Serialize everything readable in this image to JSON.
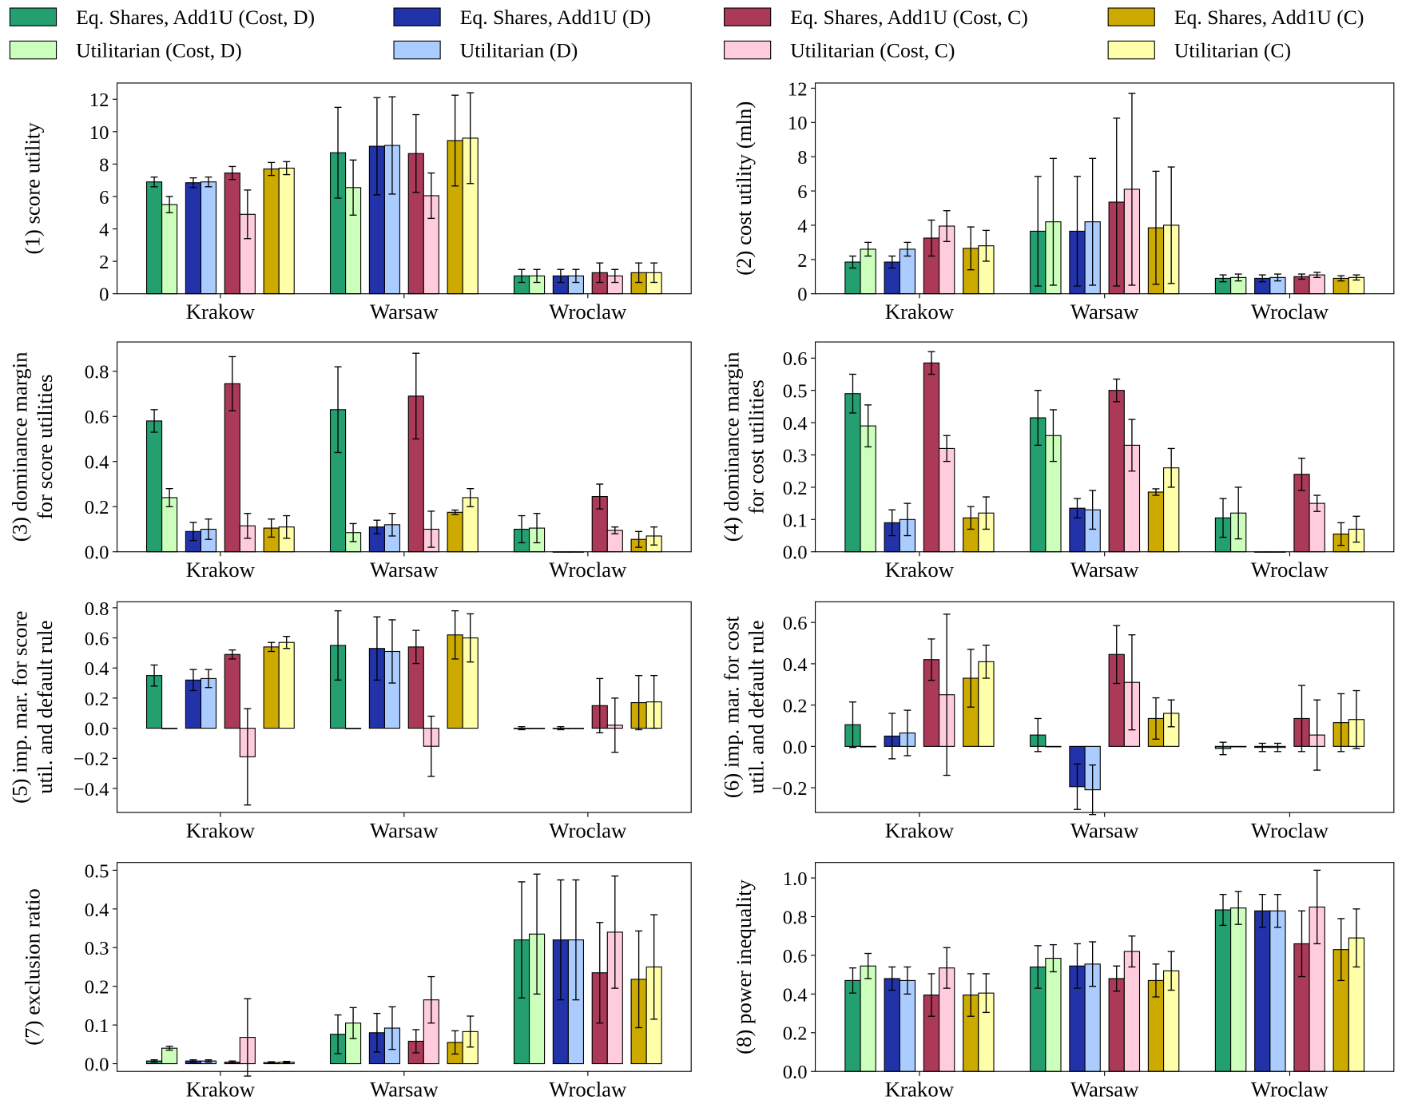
{
  "legend": {
    "placement": "top",
    "entries": [
      {
        "name": "Eq. Shares, Add1U (Cost, D)",
        "color": "#24a070"
      },
      {
        "name": "Utilitarian (Cost, D)",
        "color": "#ccffbb"
      },
      {
        "name": "Eq. Shares, Add1U (D)",
        "color": "#2233aa"
      },
      {
        "name": "Utilitarian (D)",
        "color": "#aaccff"
      },
      {
        "name": "Eq. Shares, Add1U (Cost, C)",
        "color": "#aa3a58"
      },
      {
        "name": "Utilitarian (Cost, C)",
        "color": "#ffccdd"
      },
      {
        "name": "Eq. Shares, Add1U (C)",
        "color": "#ccaa00"
      },
      {
        "name": "Utilitarian (C)",
        "color": "#ffffaa"
      }
    ]
  },
  "chart_data": [
    {
      "type": "bar",
      "ylabel": [
        "(1) score utility"
      ],
      "categories": [
        "Krakow",
        "Warsaw",
        "Wroclaw"
      ],
      "ylim": [
        0,
        13
      ],
      "yticks": [
        "0",
        "2",
        "4",
        "6",
        "8",
        "10",
        "12"
      ],
      "ytick_values": [
        0,
        2,
        4,
        6,
        8,
        10,
        12
      ],
      "values": [
        [
          6.9,
          5.5,
          6.85,
          6.9,
          7.45,
          4.9,
          7.7,
          7.75
        ],
        [
          8.7,
          6.55,
          9.1,
          9.15,
          8.65,
          6.05,
          9.45,
          9.6
        ],
        [
          1.1,
          1.1,
          1.1,
          1.1,
          1.3,
          1.1,
          1.3,
          1.3
        ]
      ],
      "errors": [
        [
          0.3,
          0.5,
          0.3,
          0.3,
          0.4,
          1.5,
          0.4,
          0.4
        ],
        [
          2.8,
          1.7,
          3.0,
          3.0,
          2.4,
          1.4,
          2.8,
          2.8
        ],
        [
          0.4,
          0.4,
          0.4,
          0.4,
          0.6,
          0.4,
          0.6,
          0.6
        ]
      ]
    },
    {
      "type": "bar",
      "ylabel": [
        "(2) cost utility (mln)"
      ],
      "categories": [
        "Krakow",
        "Warsaw",
        "Wroclaw"
      ],
      "ylim": [
        0,
        12.3
      ],
      "yticks": [
        "0",
        "2",
        "4",
        "6",
        "8",
        "10",
        "12"
      ],
      "ytick_values": [
        0,
        2,
        4,
        6,
        8,
        10,
        12
      ],
      "values": [
        [
          1.85,
          2.6,
          1.85,
          2.6,
          3.25,
          3.95,
          2.65,
          2.8
        ],
        [
          3.65,
          4.2,
          3.65,
          4.2,
          5.35,
          6.1,
          3.85,
          4.0
        ],
        [
          0.9,
          0.95,
          0.9,
          0.95,
          1.0,
          1.1,
          0.9,
          0.95
        ]
      ],
      "errors": [
        [
          0.35,
          0.4,
          0.35,
          0.4,
          1.05,
          0.9,
          1.25,
          0.9
        ],
        [
          3.2,
          3.7,
          3.2,
          3.7,
          4.9,
          5.6,
          3.3,
          3.4
        ],
        [
          0.2,
          0.2,
          0.2,
          0.2,
          0.15,
          0.15,
          0.15,
          0.15
        ]
      ]
    },
    {
      "type": "bar",
      "ylabel": [
        "(3) dominance margin",
        "for score utilities"
      ],
      "categories": [
        "Krakow",
        "Warsaw",
        "Wroclaw"
      ],
      "ylim": [
        0,
        0.93
      ],
      "yticks": [
        "0.0",
        "0.2",
        "0.4",
        "0.6",
        "0.8"
      ],
      "ytick_values": [
        0,
        0.2,
        0.4,
        0.6,
        0.8
      ],
      "values": [
        [
          0.58,
          0.24,
          0.09,
          0.1,
          0.745,
          0.115,
          0.105,
          0.11
        ],
        [
          0.63,
          0.085,
          0.11,
          0.12,
          0.69,
          0.1,
          0.175,
          0.24
        ],
        [
          0.1,
          0.105,
          0,
          0,
          0.245,
          0.095,
          0.055,
          0.07
        ]
      ],
      "errors": [
        [
          0.05,
          0.04,
          0.04,
          0.045,
          0.12,
          0.055,
          0.04,
          0.05
        ],
        [
          0.19,
          0.04,
          0.03,
          0.05,
          0.19,
          0.08,
          0.01,
          0.04
        ],
        [
          0.06,
          0.065,
          0,
          0,
          0.055,
          0.015,
          0.035,
          0.04
        ]
      ]
    },
    {
      "type": "bar",
      "ylabel": [
        "(4) dominance margin",
        "for cost utilities"
      ],
      "categories": [
        "Krakow",
        "Warsaw",
        "Wroclaw"
      ],
      "ylim": [
        0,
        0.65
      ],
      "yticks": [
        "0.0",
        "0.1",
        "0.2",
        "0.3",
        "0.4",
        "0.5",
        "0.6"
      ],
      "ytick_values": [
        0,
        0.1,
        0.2,
        0.3,
        0.4,
        0.5,
        0.6
      ],
      "values": [
        [
          0.49,
          0.39,
          0.09,
          0.1,
          0.585,
          0.32,
          0.105,
          0.12
        ],
        [
          0.415,
          0.36,
          0.135,
          0.13,
          0.5,
          0.33,
          0.185,
          0.26
        ],
        [
          0.105,
          0.12,
          0,
          0,
          0.24,
          0.15,
          0.055,
          0.07
        ]
      ],
      "errors": [
        [
          0.06,
          0.065,
          0.04,
          0.05,
          0.035,
          0.04,
          0.035,
          0.05
        ],
        [
          0.085,
          0.08,
          0.03,
          0.06,
          0.035,
          0.08,
          0.01,
          0.06
        ],
        [
          0.06,
          0.08,
          0,
          0,
          0.05,
          0.025,
          0.035,
          0.04
        ]
      ]
    },
    {
      "type": "bar",
      "ylabel": [
        "(5) imp. mar. for score",
        "util. and default rule"
      ],
      "categories": [
        "Krakow",
        "Warsaw",
        "Wroclaw"
      ],
      "ylim": [
        -0.56,
        0.84
      ],
      "yticks": [
        "−0.4",
        "−0.2",
        "0.0",
        "0.2",
        "0.4",
        "0.6",
        "0.8"
      ],
      "ytick_values": [
        -0.4,
        -0.2,
        0,
        0.2,
        0.4,
        0.6,
        0.8
      ],
      "values": [
        [
          0.35,
          0,
          0.32,
          0.33,
          0.49,
          -0.19,
          0.54,
          0.57
        ],
        [
          0.55,
          0,
          0.53,
          0.51,
          0.54,
          -0.12,
          0.62,
          0.6
        ],
        [
          0,
          0,
          0,
          0,
          0.15,
          0.02,
          0.17,
          0.175
        ]
      ],
      "errors": [
        [
          0.07,
          0,
          0.07,
          0.06,
          0.03,
          0.32,
          0.03,
          0.04
        ],
        [
          0.23,
          0,
          0.21,
          0.21,
          0.11,
          0.2,
          0.16,
          0.16
        ],
        [
          0.01,
          0,
          0.01,
          0,
          0.18,
          0.18,
          0.18,
          0.175
        ]
      ]
    },
    {
      "type": "bar",
      "ylabel": [
        "(6) imp. mar. for cost",
        "util. and default rule"
      ],
      "categories": [
        "Krakow",
        "Warsaw",
        "Wroclaw"
      ],
      "ylim": [
        -0.32,
        0.7
      ],
      "yticks": [
        "−0.2",
        "0.0",
        "0.2",
        "0.4",
        "0.6"
      ],
      "ytick_values": [
        -0.2,
        0,
        0.2,
        0.4,
        0.6
      ],
      "values": [
        [
          0.105,
          0,
          0.05,
          0.065,
          0.42,
          0.25,
          0.33,
          0.41
        ],
        [
          0.055,
          0,
          -0.195,
          -0.21,
          0.445,
          0.31,
          0.135,
          0.16
        ],
        [
          -0.01,
          0,
          -0.005,
          -0.005,
          0.135,
          0.055,
          0.115,
          0.13
        ]
      ],
      "errors": [
        [
          0.11,
          0,
          0.11,
          0.11,
          0.1,
          0.39,
          0.14,
          0.08
        ],
        [
          0.08,
          0,
          0.11,
          0.12,
          0.14,
          0.23,
          0.1,
          0.065
        ],
        [
          0.03,
          0,
          0.02,
          0.02,
          0.16,
          0.17,
          0.14,
          0.14
        ]
      ]
    },
    {
      "type": "bar",
      "ylabel": [
        "(7) exclusion ratio"
      ],
      "categories": [
        "Krakow",
        "Warsaw",
        "Wroclaw"
      ],
      "ylim": [
        -0.02,
        0.52
      ],
      "yticks": [
        "0.0",
        "0.1",
        "0.2",
        "0.3",
        "0.4",
        "0.5"
      ],
      "ytick_values": [
        0,
        0.1,
        0.2,
        0.3,
        0.4,
        0.5
      ],
      "values": [
        [
          0.007,
          0.04,
          0.007,
          0.007,
          0.004,
          0.068,
          0.003,
          0.004
        ],
        [
          0.076,
          0.105,
          0.08,
          0.092,
          0.058,
          0.165,
          0.055,
          0.083
        ],
        [
          0.32,
          0.335,
          0.32,
          0.32,
          0.235,
          0.34,
          0.218,
          0.25
        ]
      ],
      "errors": [
        [
          0.003,
          0.005,
          0.003,
          0.003,
          0.003,
          0.1,
          0.002,
          0.002
        ],
        [
          0.05,
          0.04,
          0.05,
          0.055,
          0.03,
          0.06,
          0.03,
          0.04
        ],
        [
          0.15,
          0.155,
          0.155,
          0.155,
          0.13,
          0.145,
          0.125,
          0.135
        ]
      ]
    },
    {
      "type": "bar",
      "ylabel": [
        "(8) power inequality"
      ],
      "categories": [
        "Krakow",
        "Warsaw",
        "Wroclaw"
      ],
      "ylim": [
        0,
        1.08
      ],
      "yticks": [
        "0.0",
        "0.2",
        "0.4",
        "0.6",
        "0.8",
        "1.0"
      ],
      "ytick_values": [
        0,
        0.2,
        0.4,
        0.6,
        0.8,
        1.0
      ],
      "values": [
        [
          0.47,
          0.545,
          0.48,
          0.47,
          0.395,
          0.535,
          0.395,
          0.405
        ],
        [
          0.54,
          0.585,
          0.545,
          0.555,
          0.48,
          0.62,
          0.47,
          0.52
        ],
        [
          0.835,
          0.845,
          0.83,
          0.83,
          0.66,
          0.85,
          0.63,
          0.69
        ]
      ],
      "errors": [
        [
          0.065,
          0.065,
          0.06,
          0.07,
          0.11,
          0.105,
          0.11,
          0.1
        ],
        [
          0.11,
          0.07,
          0.115,
          0.115,
          0.065,
          0.08,
          0.085,
          0.1
        ],
        [
          0.08,
          0.085,
          0.085,
          0.085,
          0.17,
          0.19,
          0.16,
          0.15
        ]
      ]
    }
  ]
}
